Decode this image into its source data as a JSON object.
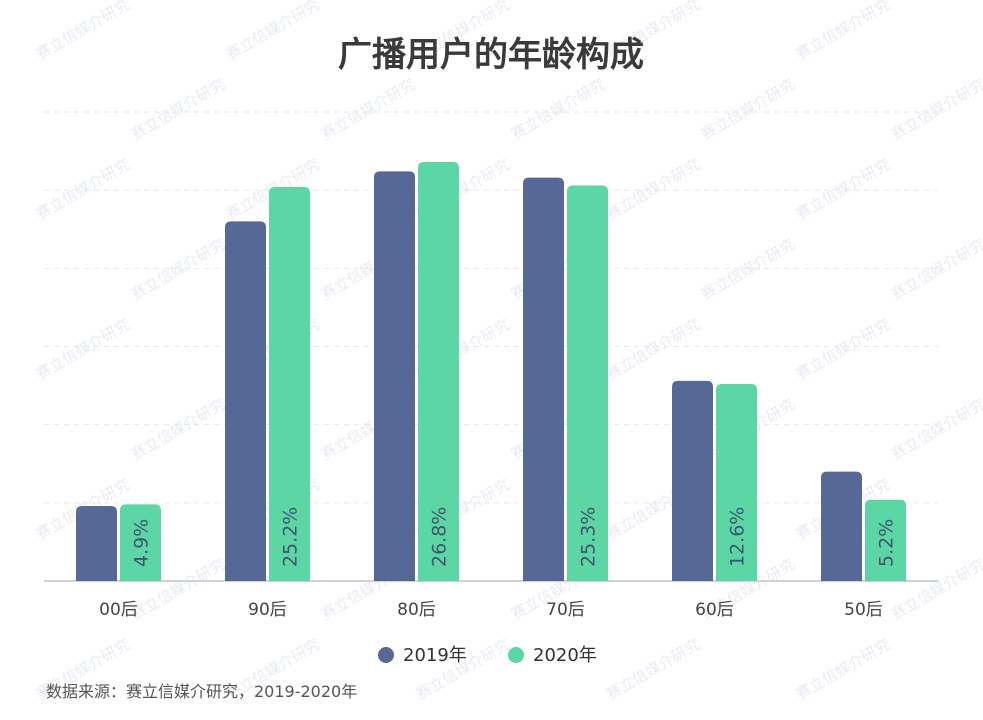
{
  "chart_data": {
    "type": "bar",
    "title": "广播用户的年龄构成",
    "categories": [
      "00后",
      "90后",
      "80后",
      "70后",
      "60后",
      "50后"
    ],
    "series": [
      {
        "name": "2019年",
        "color": "#566996",
        "values": [
          4.8,
          23.0,
          26.2,
          25.8,
          12.8,
          7.0
        ]
      },
      {
        "name": "2020年",
        "color": "#5dd6a5",
        "values": [
          4.9,
          25.2,
          26.8,
          25.3,
          12.6,
          5.2
        ],
        "labels": [
          "4.9%",
          "25.2%",
          "26.8%",
          "25.3%",
          "12.6%",
          "5.2%"
        ]
      }
    ],
    "ylim": [
      0,
      30
    ],
    "grid": true,
    "legend_position": "bottom-center",
    "xlabel": "",
    "ylabel": ""
  },
  "source": "数据来源：赛立信媒介研究，2019-2020年",
  "watermark": "赛立信媒介研究"
}
